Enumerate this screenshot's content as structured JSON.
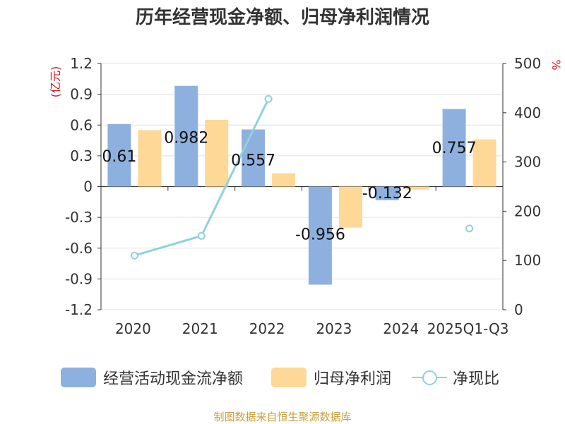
{
  "title": "历年经营现金净额、归母净利润情况",
  "source": "制图数据来自恒生聚源数据库",
  "legend": {
    "ocf": "经营活动现金流净额",
    "profit": "归母净利润",
    "ratio": "净现比"
  },
  "colors": {
    "ocf": "#8eb0de",
    "profit": "#fdd896",
    "ratio": "#8ed3d9",
    "axis_label_red": "#e01010",
    "grid": "#e0e0e0",
    "axis": "#333333",
    "text": "#333333"
  },
  "chart_data": {
    "type": "bar",
    "categories": [
      "2020",
      "2021",
      "2022",
      "2023",
      "2024",
      "2025Q1-Q3"
    ],
    "left_axis": {
      "unit_label": "(亿元)",
      "range": [
        -1.2,
        1.2
      ],
      "ticks": [
        "1.2",
        "0.9",
        "0.6",
        "0.3",
        "0",
        "-0.3",
        "-0.6",
        "-0.9",
        "-1.2"
      ],
      "tick_values": [
        1.2,
        0.9,
        0.6,
        0.3,
        0,
        -0.3,
        -0.6,
        -0.9,
        -1.2
      ]
    },
    "right_axis": {
      "unit_label": "%",
      "range": [
        0,
        500
      ],
      "ticks": [
        "500",
        "400",
        "300",
        "200",
        "100",
        "0"
      ],
      "tick_values": [
        500,
        400,
        300,
        200,
        100,
        0
      ]
    },
    "series": [
      {
        "name": "经营活动现金流净额",
        "kind": "bar",
        "axis": "left",
        "values": [
          0.61,
          0.982,
          0.557,
          -0.956,
          -0.132,
          0.757
        ],
        "labels": [
          "0.61",
          "0.982",
          "0.557",
          "-0.956",
          "-0.132",
          "0.757"
        ]
      },
      {
        "name": "归母净利润",
        "kind": "bar",
        "axis": "left",
        "values": [
          0.55,
          0.65,
          0.13,
          -0.4,
          -0.03,
          0.46
        ]
      },
      {
        "name": "净现比",
        "kind": "line",
        "axis": "right",
        "values": [
          110,
          150,
          428,
          null,
          null,
          165
        ]
      }
    ]
  }
}
